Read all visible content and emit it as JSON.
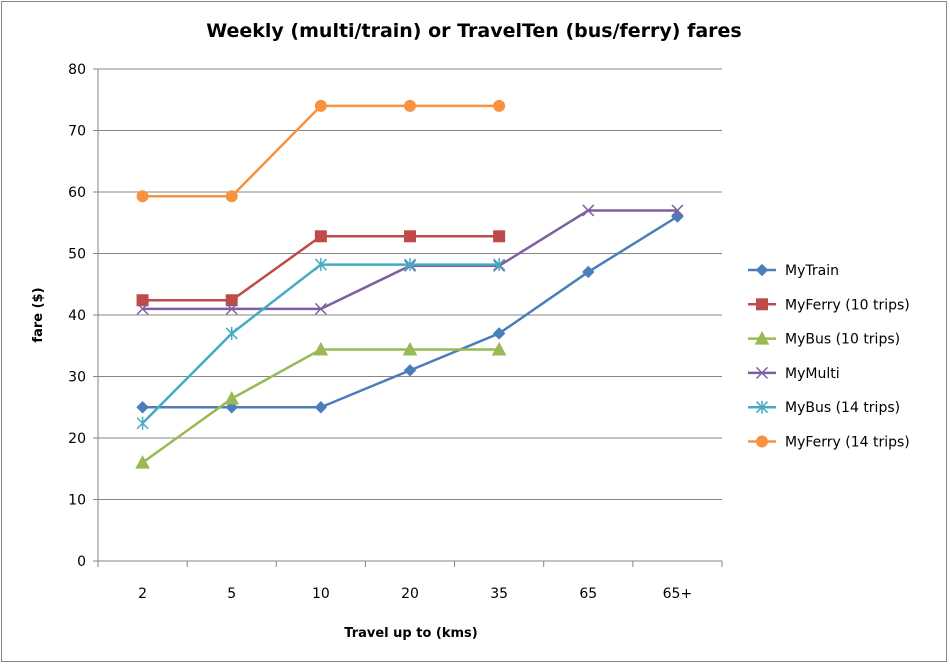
{
  "chart_data": {
    "type": "line",
    "title": "Weekly (multi/train) or TravelTen (bus/ferry) fares",
    "xlabel": "Travel up to (kms)",
    "ylabel": "fare ($)",
    "categories": [
      "2",
      "5",
      "10",
      "20",
      "35",
      "65",
      "65+"
    ],
    "ylim": [
      0,
      80
    ],
    "yticks": [
      0,
      10,
      20,
      30,
      40,
      50,
      60,
      70,
      80
    ],
    "grid": true,
    "legend_position": "right",
    "series": [
      {
        "name": "MyTrain",
        "color": "#4a7ebb",
        "marker": "diamond",
        "values": [
          25,
          25,
          25,
          31,
          37,
          47,
          56
        ]
      },
      {
        "name": "MyFerry (10 trips)",
        "color": "#be4b48",
        "marker": "square",
        "values": [
          42.4,
          42.4,
          52.8,
          52.8,
          52.8,
          null,
          null
        ]
      },
      {
        "name": "MyBus (10 trips)",
        "color": "#98b954",
        "marker": "triangle",
        "values": [
          16,
          26.4,
          34.4,
          34.4,
          34.4,
          null,
          null
        ]
      },
      {
        "name": "MyMulti",
        "color": "#7d60a0",
        "marker": "x",
        "values": [
          41,
          41,
          41,
          48,
          48,
          57,
          57
        ]
      },
      {
        "name": "MyBus (14 trips)",
        "color": "#46aac4",
        "marker": "star",
        "values": [
          22.4,
          37,
          48.2,
          48.2,
          48.2,
          null,
          null
        ]
      },
      {
        "name": "MyFerry (14 trips)",
        "color": "#f69240",
        "marker": "circle",
        "values": [
          59.3,
          59.3,
          74,
          74,
          74,
          null,
          null
        ]
      }
    ]
  }
}
